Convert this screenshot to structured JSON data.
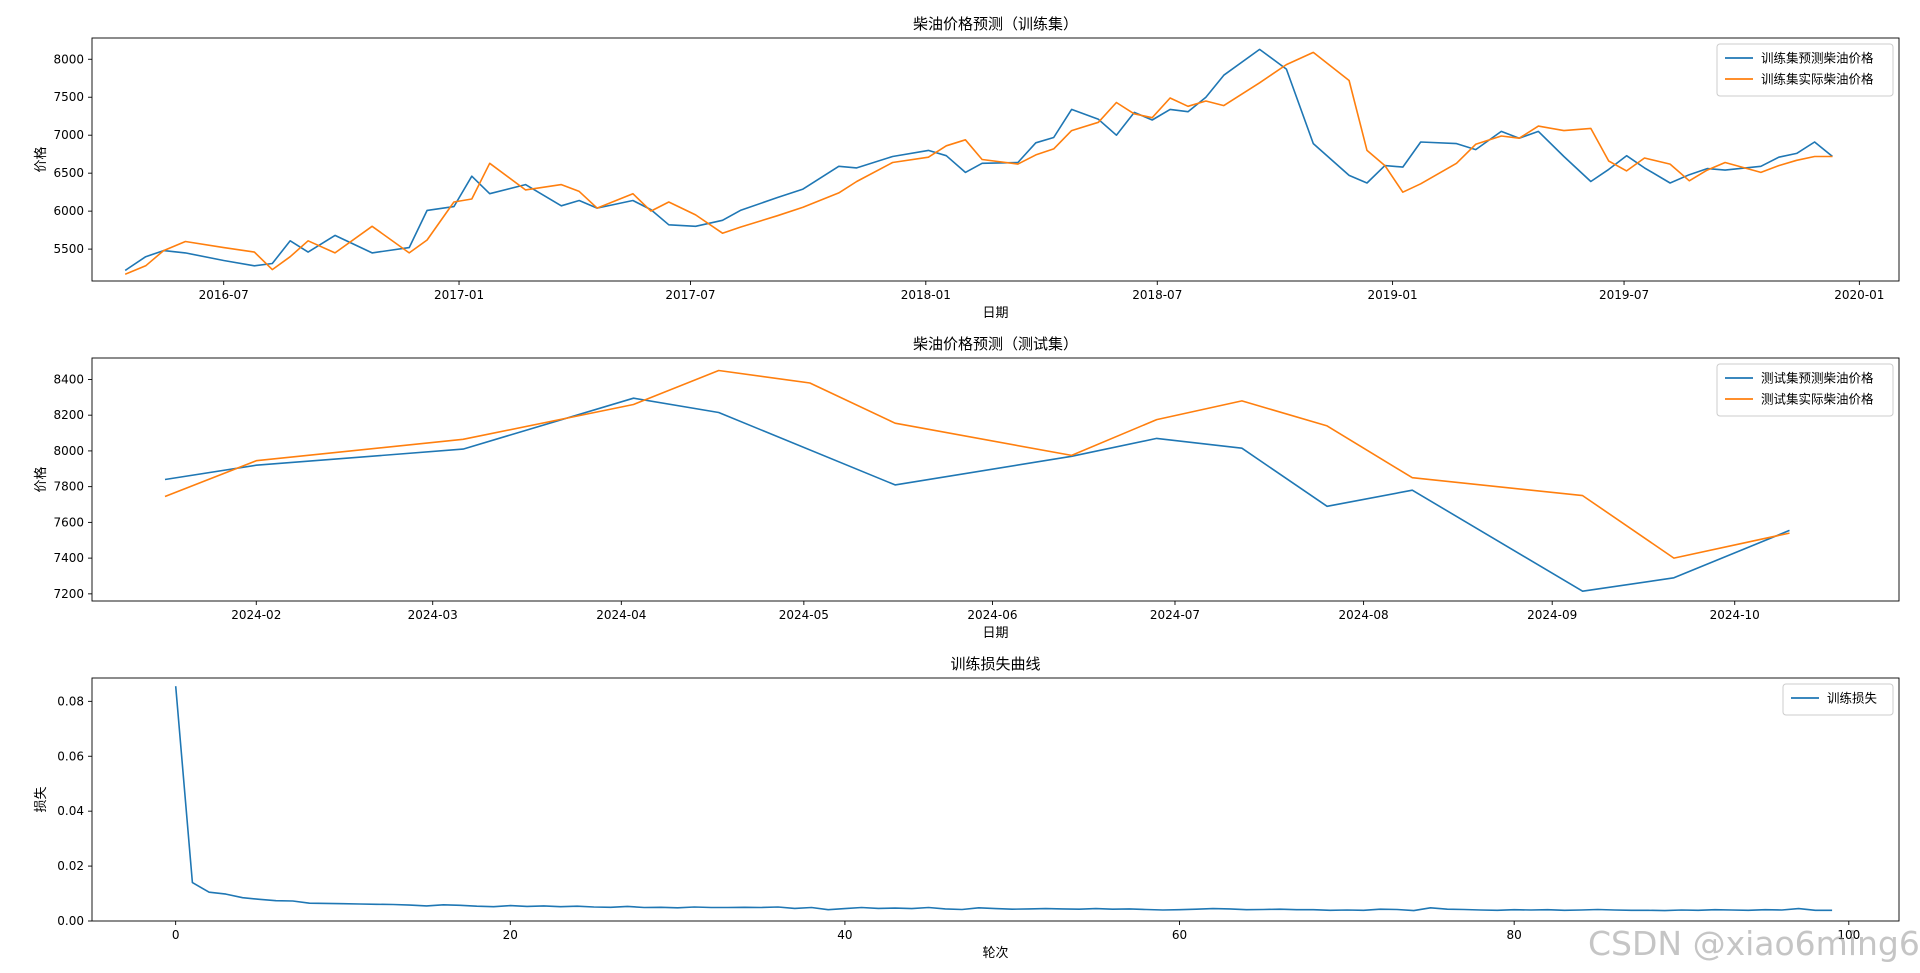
{
  "colors": {
    "series1": "#1f77b4",
    "series2": "#ff7f0e",
    "axis": "#000000"
  },
  "watermark": "CSDN @xiao6ming6",
  "chart_data": [
    {
      "type": "line",
      "title": "柴油价格预测（训练集）",
      "xlabel": "日期",
      "ylabel": "价格",
      "x_type": "date",
      "xlim": [
        "2016-03-20",
        "2020-02-01"
      ],
      "ylim": [
        5080,
        8280
      ],
      "xticks": [
        "2016-07",
        "2017-01",
        "2017-07",
        "2018-01",
        "2018-07",
        "2019-01",
        "2019-07",
        "2020-01"
      ],
      "yticks": [
        5500,
        6000,
        6500,
        7000,
        7500,
        8000
      ],
      "legend": "top-right",
      "series": [
        {
          "name": "训练集预测柴油价格",
          "color": "#1f77b4",
          "x": [
            "2016-04-15",
            "2016-05-01",
            "2016-05-15",
            "2016-06-01",
            "2016-07-01",
            "2016-07-25",
            "2016-08-08",
            "2016-08-22",
            "2016-09-05",
            "2016-09-26",
            "2016-10-25",
            "2016-11-23",
            "2016-12-07",
            "2016-12-28",
            "2017-01-11",
            "2017-01-25",
            "2017-02-22",
            "2017-03-22",
            "2017-04-05",
            "2017-04-19",
            "2017-05-17",
            "2017-05-31",
            "2017-06-14",
            "2017-07-05",
            "2017-07-26",
            "2017-08-09",
            "2017-09-07",
            "2017-09-27",
            "2017-10-25",
            "2017-11-08",
            "2017-12-06",
            "2018-01-03",
            "2018-01-17",
            "2018-02-01",
            "2018-02-14",
            "2018-03-14",
            "2018-03-28",
            "2018-04-11",
            "2018-04-25",
            "2018-05-16",
            "2018-05-30",
            "2018-06-13",
            "2018-06-27",
            "2018-07-11",
            "2018-07-25",
            "2018-08-08",
            "2018-08-22",
            "2018-09-19",
            "2018-10-10",
            "2018-10-31",
            "2018-11-28",
            "2018-12-12",
            "2018-12-26",
            "2019-01-09",
            "2019-01-23",
            "2019-02-20",
            "2019-03-07",
            "2019-03-27",
            "2019-04-10",
            "2019-04-25",
            "2019-05-15",
            "2019-06-05",
            "2019-06-19",
            "2019-07-03",
            "2019-07-17",
            "2019-08-06",
            "2019-08-21",
            "2019-09-04",
            "2019-09-18",
            "2019-10-16",
            "2019-10-30",
            "2019-11-13",
            "2019-11-27",
            "2019-12-11"
          ],
          "y": [
            5220,
            5400,
            5480,
            5450,
            5350,
            5280,
            5310,
            5610,
            5460,
            5680,
            5450,
            5520,
            6010,
            6060,
            6460,
            6230,
            6350,
            6070,
            6140,
            6040,
            6140,
            6020,
            5820,
            5800,
            5880,
            6010,
            6180,
            6290,
            6590,
            6570,
            6720,
            6800,
            6730,
            6510,
            6630,
            6640,
            6900,
            6970,
            7340,
            7210,
            7000,
            7300,
            7200,
            7340,
            7310,
            7500,
            7790,
            8130,
            7870,
            6890,
            6470,
            6370,
            6600,
            6580,
            6910,
            6890,
            6810,
            7050,
            6960,
            7050,
            6720,
            6390,
            6550,
            6730,
            6570,
            6370,
            6480,
            6560,
            6540,
            6590,
            6710,
            6760,
            6910,
            6720
          ]
        },
        {
          "name": "训练集实际柴油价格",
          "color": "#ff7f0e",
          "x": [
            "2016-04-15",
            "2016-05-01",
            "2016-05-15",
            "2016-06-01",
            "2016-07-01",
            "2016-07-25",
            "2016-08-08",
            "2016-08-22",
            "2016-09-05",
            "2016-09-26",
            "2016-10-25",
            "2016-11-23",
            "2016-12-07",
            "2016-12-28",
            "2017-01-11",
            "2017-01-25",
            "2017-02-22",
            "2017-03-22",
            "2017-04-05",
            "2017-04-19",
            "2017-05-17",
            "2017-05-31",
            "2017-06-14",
            "2017-07-05",
            "2017-07-26",
            "2017-08-09",
            "2017-09-07",
            "2017-09-27",
            "2017-10-25",
            "2017-11-08",
            "2017-12-06",
            "2018-01-03",
            "2018-01-17",
            "2018-02-01",
            "2018-02-14",
            "2018-03-14",
            "2018-03-28",
            "2018-04-11",
            "2018-04-25",
            "2018-05-16",
            "2018-05-30",
            "2018-06-13",
            "2018-06-27",
            "2018-07-11",
            "2018-07-25",
            "2018-08-08",
            "2018-08-22",
            "2018-09-19",
            "2018-10-10",
            "2018-10-31",
            "2018-11-28",
            "2018-12-12",
            "2018-12-26",
            "2019-01-09",
            "2019-01-23",
            "2019-02-20",
            "2019-03-07",
            "2019-03-27",
            "2019-04-10",
            "2019-04-25",
            "2019-05-15",
            "2019-06-05",
            "2019-06-19",
            "2019-07-03",
            "2019-07-17",
            "2019-08-06",
            "2019-08-21",
            "2019-09-04",
            "2019-09-18",
            "2019-10-16",
            "2019-10-30",
            "2019-11-13",
            "2019-11-27",
            "2019-12-11"
          ],
          "y": [
            5170,
            5280,
            5480,
            5600,
            5520,
            5460,
            5230,
            5400,
            5610,
            5450,
            5800,
            5450,
            5620,
            6120,
            6160,
            6630,
            6280,
            6350,
            6260,
            6040,
            6230,
            6000,
            6120,
            5950,
            5710,
            5790,
            5940,
            6050,
            6240,
            6390,
            6640,
            6710,
            6860,
            6940,
            6680,
            6620,
            6740,
            6820,
            7060,
            7170,
            7430,
            7280,
            7230,
            7490,
            7380,
            7450,
            7390,
            7690,
            7930,
            8090,
            7720,
            6800,
            6600,
            6250,
            6360,
            6630,
            6880,
            6990,
            6960,
            7120,
            7060,
            7090,
            6660,
            6530,
            6700,
            6620,
            6400,
            6540,
            6640,
            6510,
            6600,
            6670,
            6720,
            6720
          ]
        }
      ]
    },
    {
      "type": "line",
      "title": "柴油价格预测（测试集）",
      "xlabel": "日期",
      "ylabel": "价格",
      "x_type": "date",
      "xlim": [
        "2024-01-05",
        "2024-10-28"
      ],
      "ylim": [
        7160,
        8520
      ],
      "xticks": [
        "2024-02",
        "2024-03",
        "2024-04",
        "2024-05",
        "2024-06",
        "2024-07",
        "2024-08",
        "2024-09",
        "2024-10"
      ],
      "yticks": [
        7200,
        7400,
        7600,
        7800,
        8000,
        8200,
        8400
      ],
      "legend": "top-right",
      "series": [
        {
          "name": "测试集预测柴油价格",
          "color": "#1f77b4",
          "x": [
            "2024-01-17",
            "2024-02-01",
            "2024-03-06",
            "2024-04-03",
            "2024-04-17",
            "2024-05-16",
            "2024-06-14",
            "2024-06-28",
            "2024-07-12",
            "2024-07-26",
            "2024-08-09",
            "2024-09-06",
            "2024-09-21",
            "2024-10-10"
          ],
          "y": [
            7840,
            7920,
            8010,
            8295,
            8215,
            7810,
            7970,
            8070,
            8015,
            7690,
            7780,
            7215,
            7290,
            7555
          ]
        },
        {
          "name": "测试集实际柴油价格",
          "color": "#ff7f0e",
          "x": [
            "2024-01-17",
            "2024-02-01",
            "2024-03-06",
            "2024-04-03",
            "2024-04-17",
            "2024-05-02",
            "2024-05-16",
            "2024-06-14",
            "2024-06-28",
            "2024-07-12",
            "2024-07-26",
            "2024-08-09",
            "2024-09-06",
            "2024-09-21",
            "2024-10-10"
          ],
          "y": [
            7745,
            7945,
            8065,
            8260,
            8450,
            8380,
            8155,
            7975,
            8175,
            8280,
            8140,
            7850,
            7750,
            7400,
            7540
          ]
        }
      ]
    },
    {
      "type": "line",
      "title": "训练损失曲线",
      "xlabel": "轮次",
      "ylabel": "损失",
      "xlim": [
        -5,
        103
      ],
      "ylim": [
        0,
        0.0885
      ],
      "xticks": [
        0,
        20,
        40,
        60,
        80,
        100
      ],
      "yticks": [
        0.0,
        0.02,
        0.04,
        0.06,
        0.08
      ],
      "ytick_labels": [
        "0.00",
        "0.02",
        "0.04",
        "0.06",
        "0.08"
      ],
      "legend": "top-right",
      "series": [
        {
          "name": "训练损失",
          "color": "#1f77b4",
          "x": [
            0,
            1,
            2,
            3,
            4,
            5,
            6,
            7,
            8,
            9,
            10,
            11,
            12,
            13,
            14,
            15,
            16,
            17,
            18,
            19,
            20,
            21,
            22,
            23,
            24,
            25,
            26,
            27,
            28,
            29,
            30,
            31,
            32,
            33,
            34,
            35,
            36,
            37,
            38,
            39,
            40,
            41,
            42,
            43,
            44,
            45,
            46,
            47,
            48,
            49,
            50,
            51,
            52,
            53,
            54,
            55,
            56,
            57,
            58,
            59,
            60,
            61,
            62,
            63,
            64,
            65,
            66,
            67,
            68,
            69,
            70,
            71,
            72,
            73,
            74,
            75,
            76,
            77,
            78,
            79,
            80,
            81,
            82,
            83,
            84,
            85,
            86,
            87,
            88,
            89,
            90,
            91,
            92,
            93,
            94,
            95,
            96,
            97,
            98,
            99
          ],
          "y": [
            0.0855,
            0.014,
            0.0105,
            0.0098,
            0.0085,
            0.0079,
            0.0074,
            0.0073,
            0.0065,
            0.0064,
            0.0063,
            0.0062,
            0.0061,
            0.006,
            0.0058,
            0.0055,
            0.0059,
            0.0057,
            0.0054,
            0.0052,
            0.0056,
            0.0053,
            0.0055,
            0.0052,
            0.0054,
            0.0051,
            0.005,
            0.0053,
            0.0049,
            0.005,
            0.0048,
            0.0051,
            0.0049,
            0.0049,
            0.005,
            0.0049,
            0.0051,
            0.0046,
            0.0049,
            0.0041,
            0.0045,
            0.0049,
            0.0046,
            0.0047,
            0.0045,
            0.0049,
            0.0044,
            0.0042,
            0.0048,
            0.0045,
            0.0043,
            0.0044,
            0.0045,
            0.0044,
            0.0043,
            0.0045,
            0.0043,
            0.0044,
            0.0042,
            0.004,
            0.0041,
            0.0043,
            0.0045,
            0.0044,
            0.0041,
            0.0042,
            0.0043,
            0.0041,
            0.0041,
            0.0039,
            0.004,
            0.0039,
            0.0043,
            0.0042,
            0.0038,
            0.0048,
            0.0043,
            0.0042,
            0.004,
            0.0039,
            0.0041,
            0.004,
            0.0041,
            0.0039,
            0.004,
            0.0042,
            0.004,
            0.0039,
            0.0039,
            0.0038,
            0.004,
            0.0039,
            0.0041,
            0.004,
            0.0039,
            0.0041,
            0.004,
            0.0045,
            0.0039,
            0.0039
          ]
        }
      ]
    }
  ]
}
